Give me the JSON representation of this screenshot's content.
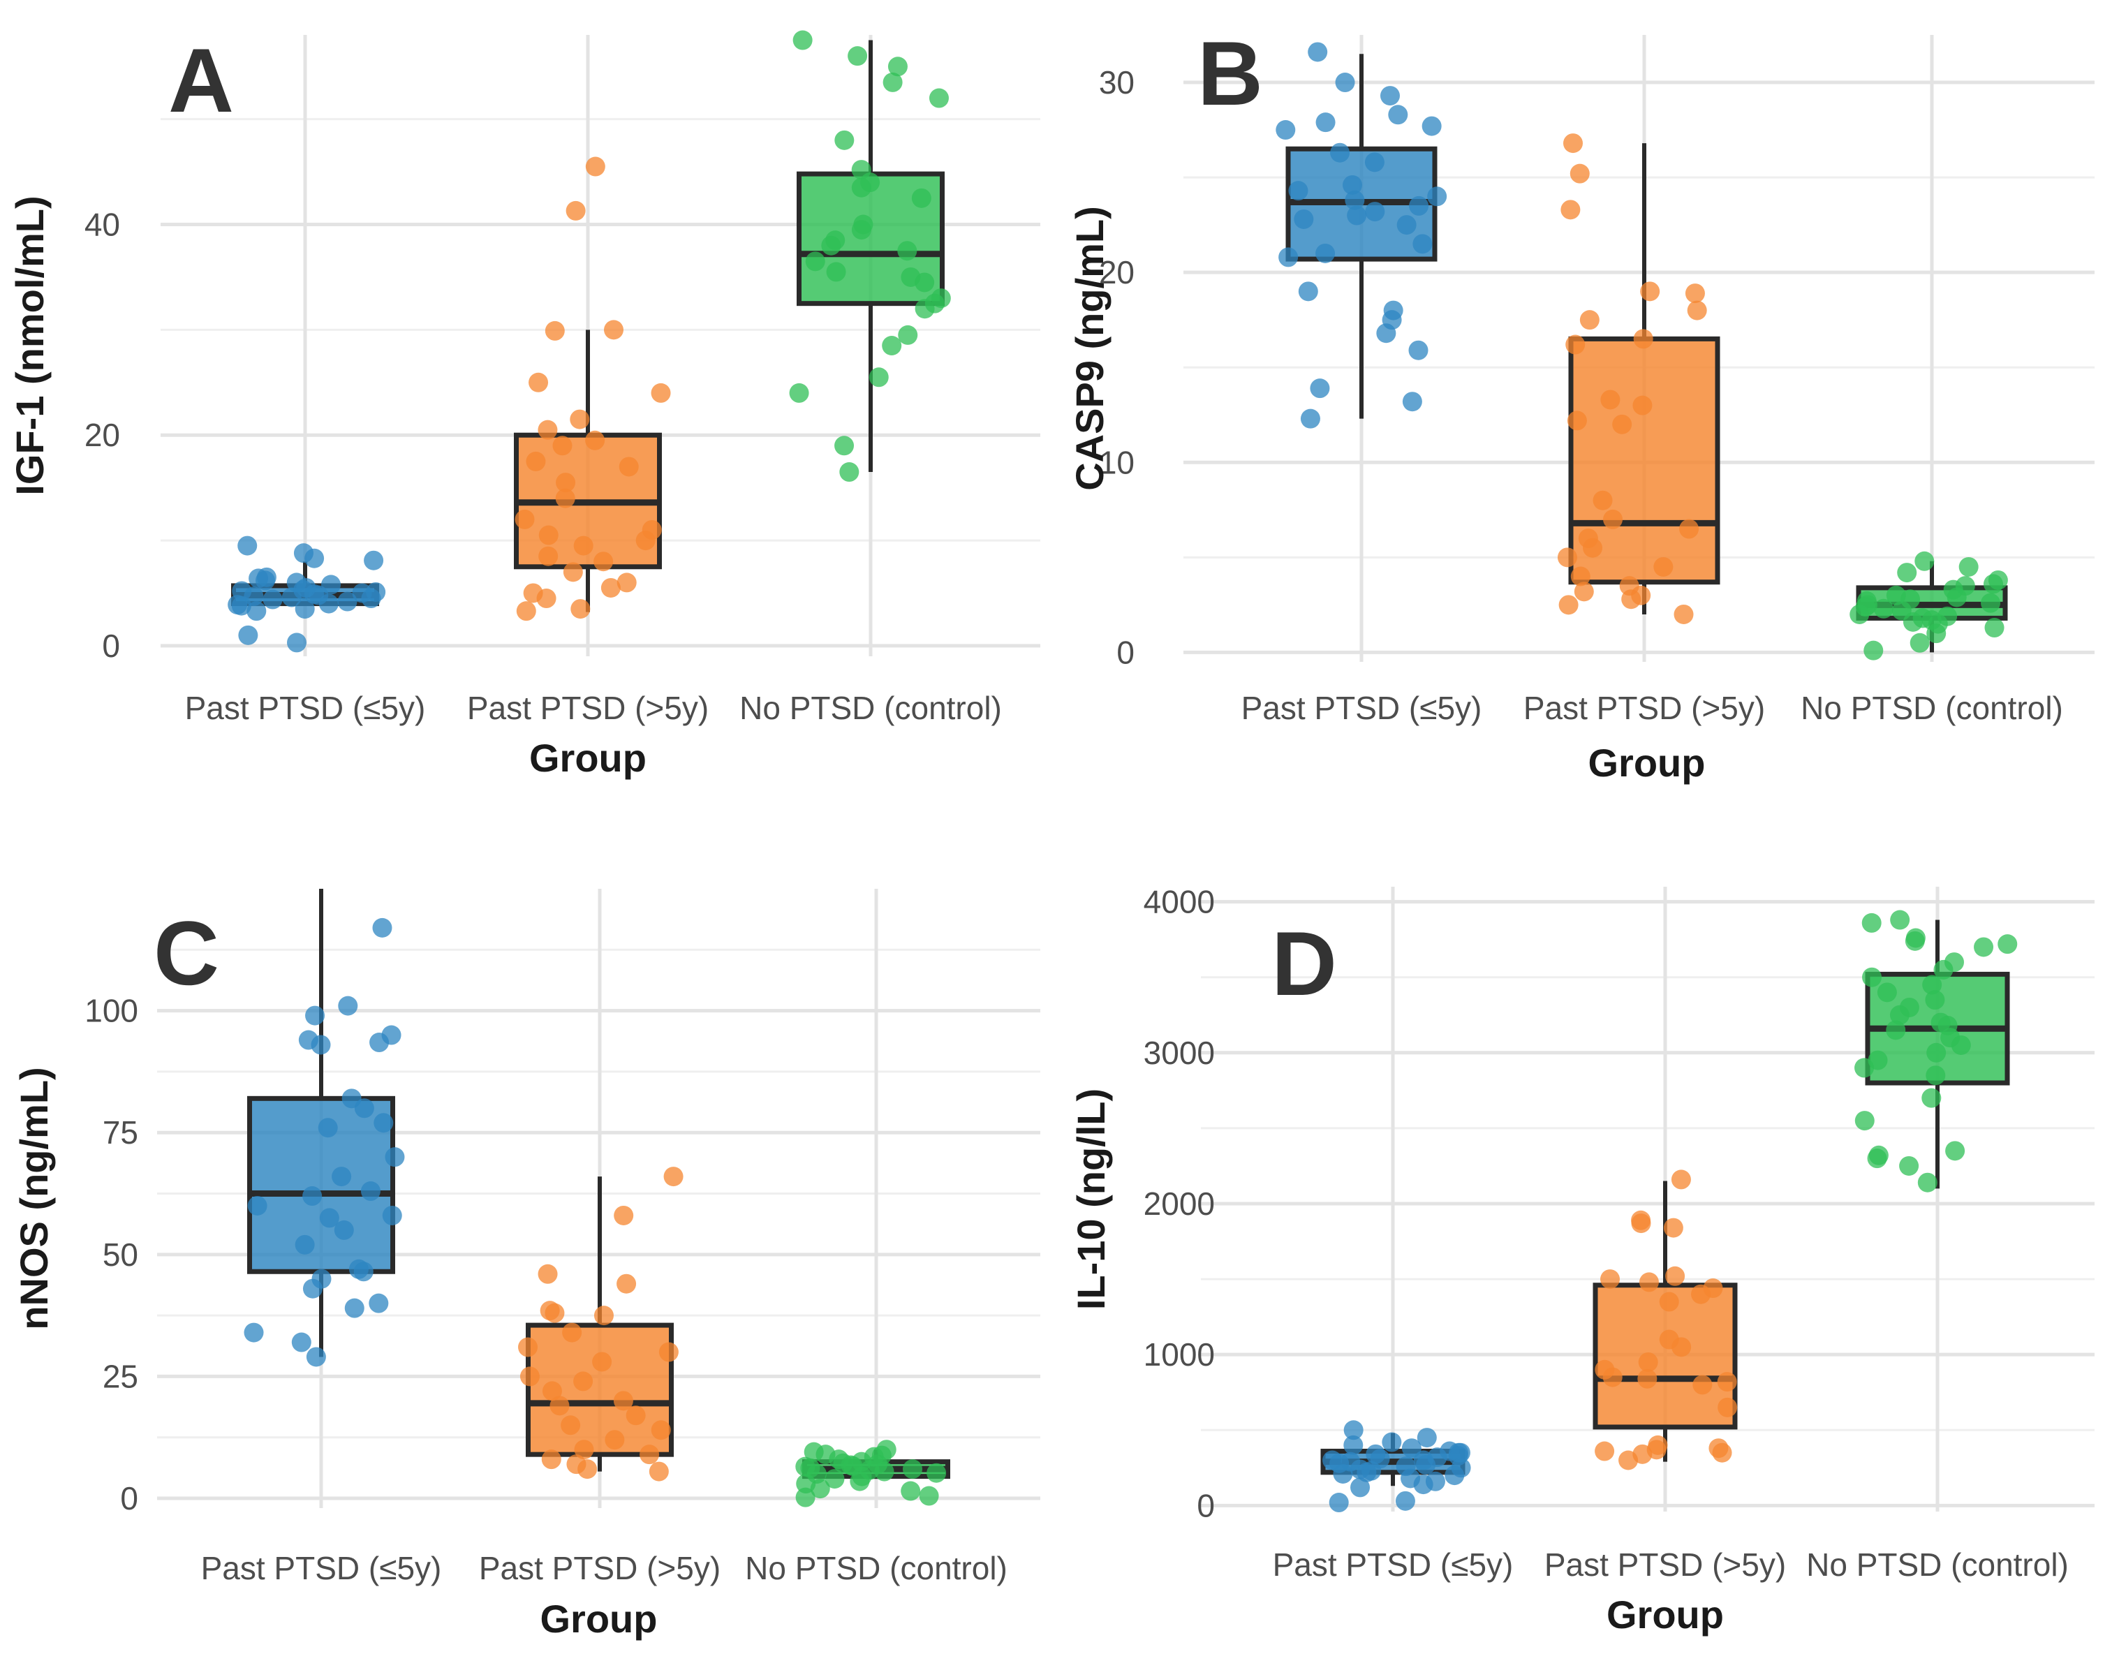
{
  "colors": {
    "blue": "#2e86c1",
    "orange": "#f5862f",
    "green": "#2fbf55",
    "box_line": "#2a2a2a",
    "grid": "#e3e3e3"
  },
  "chart_data": [
    {
      "type": "box",
      "panel": "A",
      "title": "",
      "xlabel": "Group",
      "ylabel": "IGF-1 (nmol/mL)",
      "categories": [
        "Past PTSD (≤5y)",
        "Past PTSD (>5y)",
        "No PTSD (control)"
      ],
      "ylim": [
        -1,
        58
      ],
      "yticks": [
        0,
        20,
        40
      ],
      "ytick_labels": [
        "0",
        "20",
        "40"
      ],
      "boxes": [
        {
          "whisker_low": 4.0,
          "q1": 4.0,
          "median": 4.8,
          "q3": 5.7,
          "whisker_high": 8.0
        },
        {
          "whisker_low": 3.2,
          "q1": 7.5,
          "median": 13.6,
          "q3": 20.0,
          "whisker_high": 30.0
        },
        {
          "whisker_low": 16.5,
          "q1": 32.5,
          "median": 37.2,
          "q3": 44.8,
          "whisker_high": 57.5
        }
      ],
      "points": [
        [
          8.8,
          8.3,
          9.5,
          6.5,
          6.0,
          5.5,
          5.2,
          5.0,
          4.8,
          4.6,
          4.4,
          4.2,
          4.0,
          3.8,
          3.5,
          6.2,
          5.8,
          4.7,
          4.9,
          5.3,
          3.3,
          3.9,
          4.5,
          5.1,
          1.0,
          0.3,
          8.1,
          6.4
        ],
        [
          41.3,
          45.5,
          30.0,
          29.9,
          25.0,
          24.0,
          21.5,
          20.5,
          19.5,
          19.0,
          17.5,
          17.0,
          15.5,
          14.0,
          12.0,
          11.0,
          10.5,
          10.0,
          9.5,
          8.5,
          8.0,
          7.0,
          6.0,
          5.5,
          5.0,
          4.5,
          3.5,
          3.3
        ],
        [
          57.5,
          56.0,
          55.0,
          53.5,
          52.0,
          48.0,
          45.2,
          44.0,
          43.5,
          42.5,
          40.0,
          39.5,
          38.5,
          38.0,
          37.5,
          36.5,
          35.5,
          35.0,
          34.5,
          33.0,
          32.5,
          32.0,
          29.5,
          28.5,
          25.5,
          24.0,
          19.0,
          16.5
        ]
      ]
    },
    {
      "type": "box",
      "panel": "B",
      "title": "",
      "xlabel": "Group",
      "ylabel": "CASP9 (ng/mL)",
      "categories": [
        "Past PTSD (≤5y)",
        "Past PTSD (>5y)",
        "No PTSD (control)"
      ],
      "ylim": [
        -0.5,
        32.5
      ],
      "yticks": [
        0,
        10,
        20,
        30
      ],
      "ytick_labels": [
        "0",
        "10",
        "20",
        "30"
      ],
      "boxes": [
        {
          "whisker_low": 12.3,
          "q1": 20.7,
          "median": 23.7,
          "q3": 26.5,
          "whisker_high": 31.5
        },
        {
          "whisker_low": 2.0,
          "q1": 3.7,
          "median": 6.8,
          "q3": 16.5,
          "whisker_high": 26.8
        },
        {
          "whisker_low": 0.0,
          "q1": 1.8,
          "median": 2.5,
          "q3": 3.4,
          "whisker_high": 4.8
        }
      ],
      "points": [
        [
          31.6,
          30.0,
          29.3,
          28.3,
          27.9,
          27.7,
          27.5,
          26.3,
          25.8,
          24.6,
          24.3,
          24.0,
          23.8,
          23.5,
          23.2,
          23.0,
          22.8,
          22.5,
          21.5,
          21.0,
          20.8,
          19.0,
          18.0,
          17.5,
          16.8,
          15.9,
          13.9,
          13.2,
          12.3
        ],
        [
          26.8,
          25.2,
          23.3,
          19.0,
          18.9,
          18.0,
          17.5,
          16.5,
          16.2,
          13.3,
          13.0,
          12.2,
          12.0,
          8.0,
          7.0,
          6.5,
          6.0,
          5.5,
          5.0,
          4.5,
          4.0,
          3.5,
          3.2,
          3.0,
          2.8,
          2.5,
          2.0
        ],
        [
          4.8,
          4.5,
          4.2,
          3.8,
          3.5,
          3.3,
          3.0,
          2.8,
          2.7,
          2.6,
          2.5,
          2.4,
          2.3,
          2.2,
          2.0,
          1.9,
          1.8,
          1.6,
          1.5,
          1.3,
          1.0,
          0.5,
          0.1,
          3.6,
          2.9,
          1.7
        ]
      ]
    },
    {
      "type": "box",
      "panel": "C",
      "title": "",
      "xlabel": "Group",
      "ylabel": "nNOS (ng/mL)",
      "categories": [
        "Past PTSD (≤5y)",
        "Past PTSD (>5y)",
        "No PTSD (control)"
      ],
      "ylim": [
        -2,
        125
      ],
      "yticks": [
        0,
        25,
        50,
        75,
        100
      ],
      "ytick_labels": [
        "0",
        "25",
        "50",
        "75",
        "100"
      ],
      "boxes": [
        {
          "whisker_low": 29.0,
          "q1": 46.5,
          "median": 62.5,
          "q3": 82.0,
          "whisker_high": 125.0
        },
        {
          "whisker_low": 5.5,
          "q1": 9.0,
          "median": 19.5,
          "q3": 35.5,
          "whisker_high": 66.0
        },
        {
          "whisker_low": 4.0,
          "q1": 4.5,
          "median": 6.0,
          "q3": 7.5,
          "whisker_high": 10.0
        }
      ],
      "points": [
        [
          117.0,
          101.0,
          99.0,
          95.0,
          93.5,
          94.0,
          93.0,
          82.0,
          80.0,
          77.0,
          76.0,
          70.0,
          66.0,
          63.0,
          62.0,
          60.0,
          58.0,
          57.5,
          55.0,
          52.0,
          47.0,
          46.5,
          45.0,
          43.0,
          40.0,
          39.0,
          34.0,
          32.0,
          29.0
        ],
        [
          66.0,
          58.0,
          46.0,
          44.0,
          38.5,
          38.0,
          37.5,
          34.0,
          31.0,
          30.0,
          28.0,
          25.0,
          24.0,
          22.0,
          20.0,
          19.0,
          17.0,
          15.0,
          14.0,
          12.0,
          10.0,
          9.0,
          8.0,
          7.0,
          6.0,
          5.5
        ],
        [
          10.0,
          9.5,
          9.0,
          8.5,
          8.0,
          7.5,
          7.0,
          6.8,
          6.5,
          6.2,
          6.0,
          5.8,
          5.5,
          5.2,
          5.0,
          4.5,
          4.0,
          3.5,
          3.0,
          2.0,
          1.5,
          0.5,
          0.2,
          8.8,
          7.2,
          6.6
        ]
      ]
    },
    {
      "type": "box",
      "panel": "D",
      "title": "",
      "xlabel": "Group",
      "ylabel": "IL-10 (ng/lL)",
      "categories": [
        "Past PTSD (≤5y)",
        "Past PTSD (>5y)",
        "No PTSD (control)"
      ],
      "ylim": [
        -40,
        4100
      ],
      "yticks": [
        0,
        1000,
        2000,
        3000,
        4000
      ],
      "ytick_labels": [
        "0",
        "1000",
        "2000",
        "3000",
        "4000"
      ],
      "boxes": [
        {
          "whisker_low": 130,
          "q1": 220,
          "median": 290,
          "q3": 360,
          "whisker_high": 480
        },
        {
          "whisker_low": 290,
          "q1": 520,
          "median": 840,
          "q3": 1460,
          "whisker_high": 2150
        },
        {
          "whisker_low": 2100,
          "q1": 2800,
          "median": 3160,
          "q3": 3520,
          "whisker_high": 3880
        }
      ],
      "points": [
        [
          500,
          450,
          420,
          400,
          380,
          360,
          350,
          340,
          330,
          320,
          310,
          300,
          290,
          280,
          270,
          260,
          250,
          240,
          230,
          220,
          210,
          200,
          180,
          160,
          140,
          120,
          30,
          20,
          300,
          350
        ],
        [
          2160,
          1890,
          1870,
          1840,
          1520,
          1500,
          1480,
          1440,
          1400,
          1350,
          1100,
          1050,
          950,
          900,
          850,
          840,
          820,
          800,
          650,
          400,
          380,
          370,
          360,
          350,
          340,
          300
        ],
        [
          3880,
          3860,
          3760,
          3740,
          3720,
          3700,
          3600,
          3550,
          3500,
          3450,
          3400,
          3350,
          3300,
          3250,
          3200,
          3180,
          3150,
          3100,
          3050,
          3000,
          2950,
          2900,
          2850,
          2700,
          2550,
          2350,
          2320,
          2300,
          2250,
          2140
        ]
      ]
    }
  ]
}
